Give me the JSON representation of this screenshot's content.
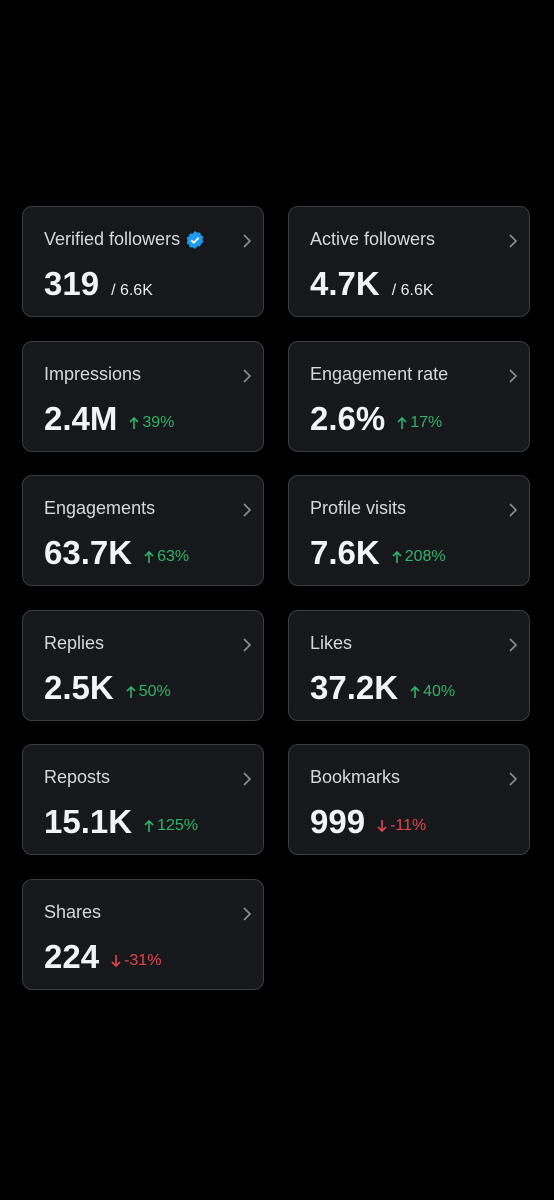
{
  "cards": [
    {
      "label": "Verified followers",
      "verified": true,
      "value": "319",
      "total": "/ 6.6K"
    },
    {
      "label": "Active followers",
      "value": "4.7K",
      "total": "/ 6.6K"
    },
    {
      "label": "Impressions",
      "value": "2.4M",
      "change": "39%",
      "direction": "up"
    },
    {
      "label": "Engagement rate",
      "value": "2.6%",
      "change": "17%",
      "direction": "up"
    },
    {
      "label": "Engagements",
      "value": "63.7K",
      "change": "63%",
      "direction": "up"
    },
    {
      "label": "Profile visits",
      "value": "7.6K",
      "change": "208%",
      "direction": "up"
    },
    {
      "label": "Replies",
      "value": "2.5K",
      "change": "50%",
      "direction": "up"
    },
    {
      "label": "Likes",
      "value": "37.2K",
      "change": "40%",
      "direction": "up"
    },
    {
      "label": "Reposts",
      "value": "15.1K",
      "change": "125%",
      "direction": "up"
    },
    {
      "label": "Bookmarks",
      "value": "999",
      "change": "-11%",
      "direction": "down"
    },
    {
      "label": "Shares",
      "value": "224",
      "change": "-31%",
      "direction": "down"
    }
  ]
}
